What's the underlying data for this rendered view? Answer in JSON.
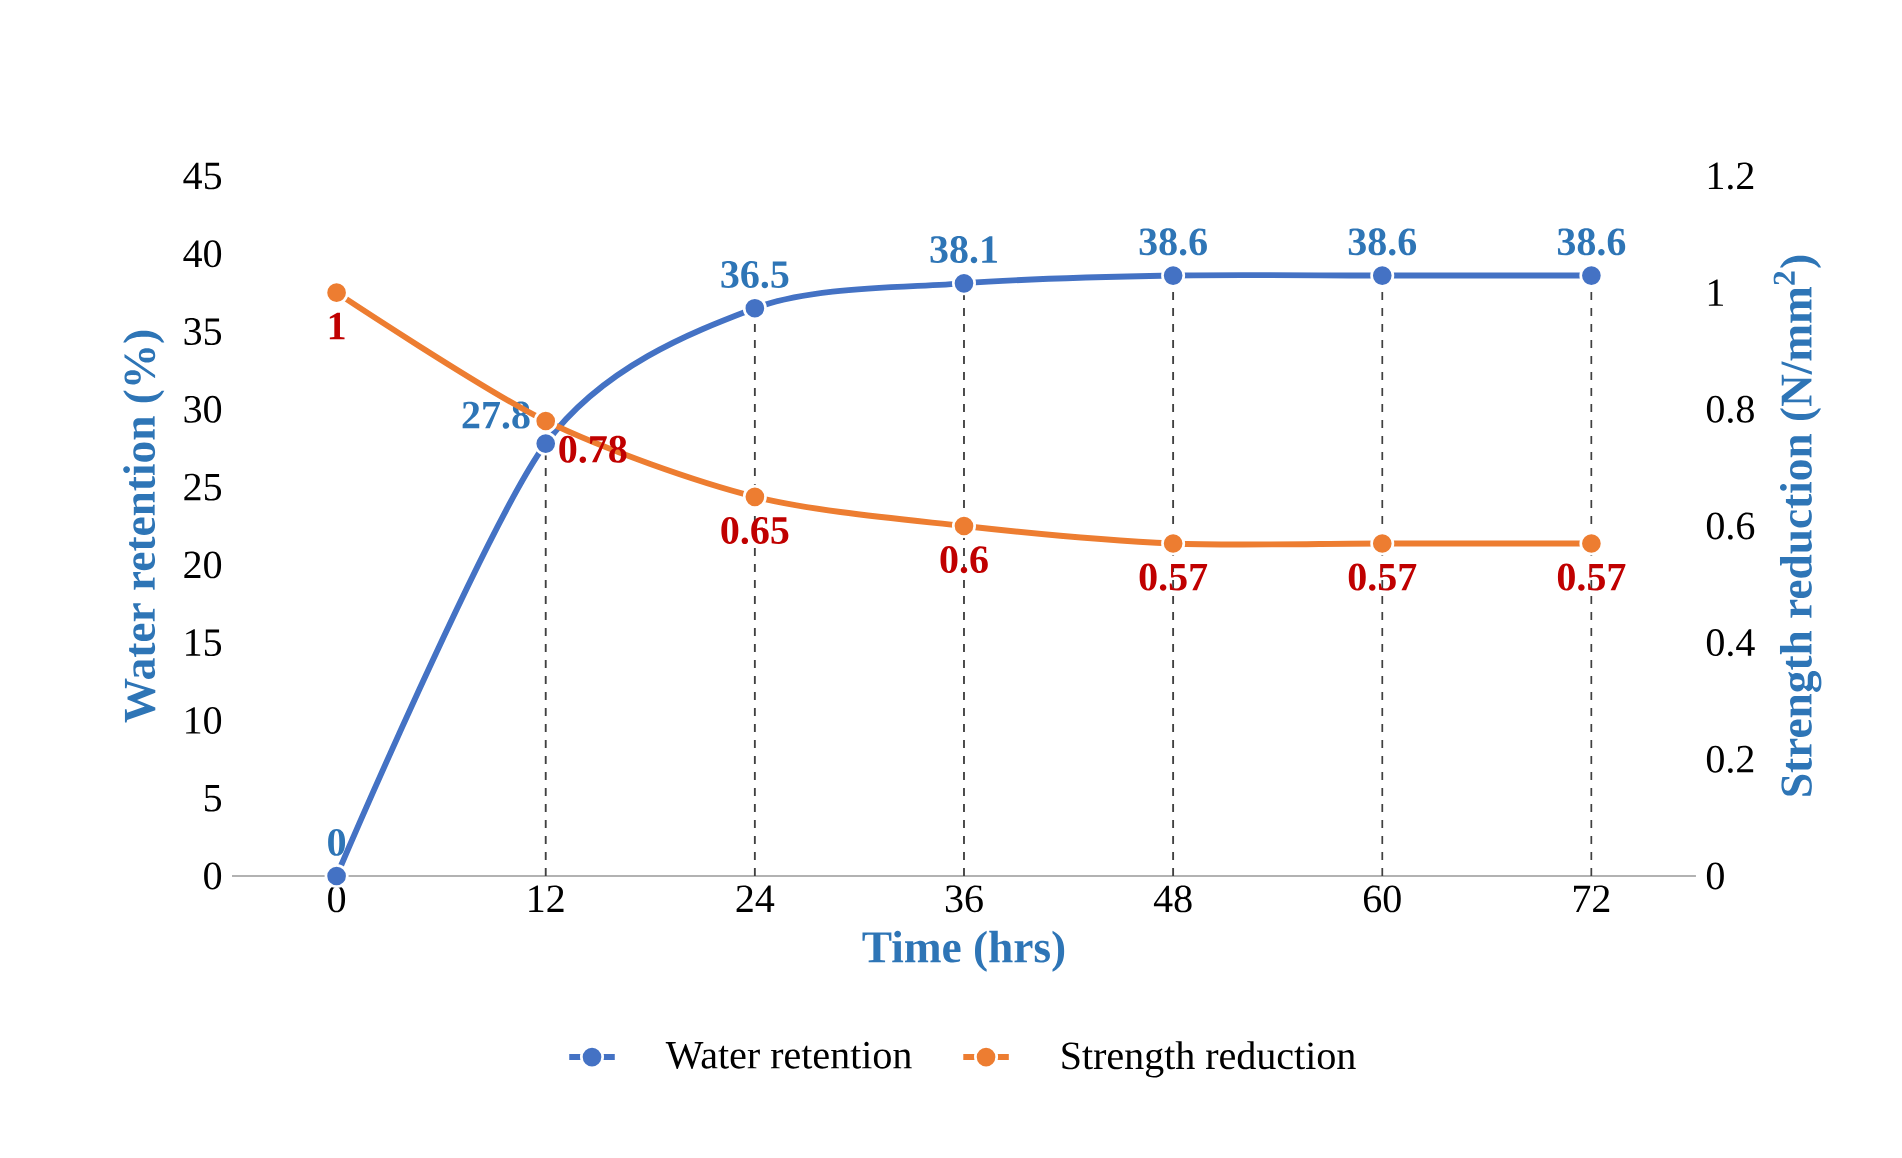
{
  "chart_data": {
    "type": "line",
    "xlabel": "Time (hrs)",
    "ylabel": "Water retention (%)",
    "y2label": "Strength reduction (N/mm$^{2}$)",
    "categories": [
      "0",
      "12",
      "24",
      "36",
      "48",
      "60",
      "72"
    ],
    "series": [
      {
        "name": "Water retention",
        "color": "#4472c4",
        "values": [
          0,
          27.8,
          36.5,
          38.1,
          38.6,
          38.6,
          38.6
        ]
      },
      {
        "name": "Strength reduction",
        "color": "#ed7d31",
        "axis": "y2",
        "values": [
          1,
          0.78,
          0.65,
          0.6,
          0.57,
          0.57,
          0.57
        ]
      }
    ],
    "ylim": [
      0,
      45
    ],
    "yticks": [
      0,
      5,
      10,
      15,
      20,
      25,
      30,
      35,
      40,
      45
    ],
    "y2lim": [
      0,
      1.2
    ],
    "y2ticks": [
      0,
      0.2,
      0.4,
      0.6,
      0.8,
      1,
      1.2
    ],
    "ref_lines": [
      {
        "axis": "x",
        "value": "12",
        "color": "#404040",
        "line_style": "dashed"
      },
      {
        "axis": "x",
        "value": "24",
        "color": "#404040",
        "line_style": "dashed"
      },
      {
        "axis": "x",
        "value": "36",
        "color": "#404040",
        "line_style": "dashed"
      },
      {
        "axis": "x",
        "value": "48",
        "color": "#404040",
        "line_style": "dashed"
      },
      {
        "axis": "x",
        "value": "60",
        "color": "#404040",
        "line_style": "dashed"
      },
      {
        "axis": "x",
        "value": "72",
        "color": "#404040",
        "line_style": "dashed"
      }
    ],
    "data_labels": true,
    "legend": "bottom",
    "marker": "circle",
    "line_style": "solid",
    "grid": false
  }
}
